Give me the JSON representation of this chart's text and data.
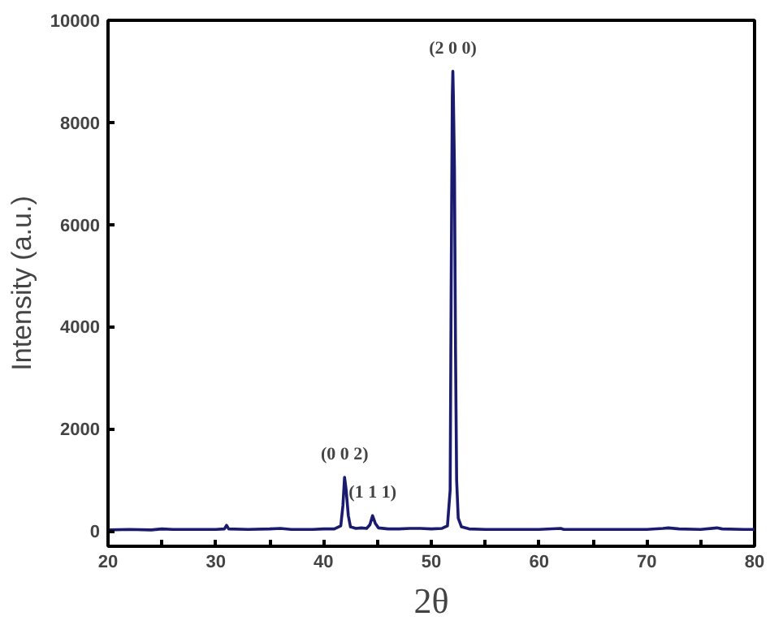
{
  "chart_data": {
    "type": "line",
    "xlabel": "2θ",
    "ylabel": "Intensity (a.u.)",
    "xlim": [
      20,
      80
    ],
    "ylim": [
      -300,
      10000
    ],
    "xticks": [
      20,
      {
        "value": 25,
        "label": null
      },
      30,
      {
        "value": 35,
        "label": null
      },
      40,
      {
        "value": 45,
        "label": null
      },
      50,
      {
        "value": 55,
        "label": null
      },
      60,
      {
        "value": 65,
        "label": null
      },
      70,
      {
        "value": 75,
        "label": null
      },
      80
    ],
    "yticks": [
      0,
      2000,
      4000,
      6000,
      8000,
      10000
    ],
    "grid": false,
    "marker": "none",
    "line_style": "solid",
    "annotations": [
      {
        "text": "(0 0 2)",
        "x": 41.95,
        "y": 1050
      },
      {
        "text": "(1 1 1)",
        "x": 44.55,
        "y": 300
      },
      {
        "text": "(2 0 0)",
        "x": 52.0,
        "y": 9000
      }
    ],
    "series": [
      {
        "color": "#1a1a6e",
        "x": [
          20,
          22,
          24,
          25,
          26,
          28,
          30,
          30.8,
          31,
          31.2,
          33,
          35,
          36,
          37,
          39,
          40,
          41,
          41.6,
          41.8,
          41.95,
          42.1,
          42.3,
          42.5,
          43,
          43.5,
          44,
          44.3,
          44.55,
          44.8,
          45.1,
          46,
          47,
          48,
          49,
          50,
          51,
          51.5,
          51.75,
          51.85,
          51.95,
          52.0,
          52.05,
          52.15,
          52.25,
          52.35,
          52.5,
          52.8,
          53.5,
          55,
          57,
          60,
          62,
          62.3,
          65,
          68,
          70,
          71.5,
          72,
          73,
          75,
          76.5,
          77,
          79,
          80
        ],
        "values": [
          20,
          30,
          20,
          40,
          30,
          30,
          30,
          40,
          110,
          40,
          30,
          40,
          50,
          30,
          30,
          40,
          40,
          100,
          500,
          1050,
          800,
          300,
          80,
          50,
          60,
          50,
          120,
          300,
          150,
          60,
          40,
          40,
          50,
          50,
          40,
          50,
          100,
          800,
          5000,
          8500,
          9000,
          8500,
          7100,
          3500,
          1000,
          250,
          80,
          40,
          30,
          30,
          30,
          50,
          30,
          30,
          30,
          30,
          50,
          60,
          40,
          30,
          60,
          40,
          30,
          30
        ]
      }
    ]
  }
}
